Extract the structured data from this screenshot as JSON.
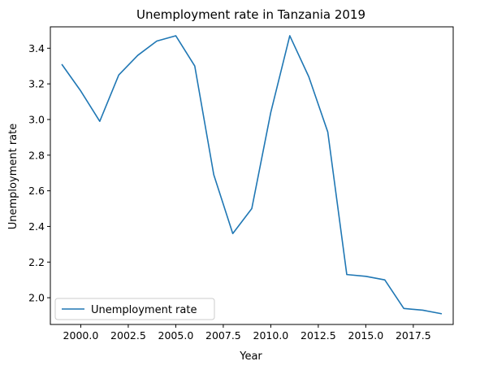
{
  "chart_data": {
    "type": "line",
    "title": "Unemployment rate in Tanzania 2019",
    "xlabel": "Year",
    "ylabel": "Unemployment rate",
    "xlim": [
      1998.4,
      2019.6
    ],
    "ylim": [
      1.85,
      3.52
    ],
    "x_ticks": [
      2000.0,
      2002.5,
      2005.0,
      2007.5,
      2010.0,
      2012.5,
      2015.0,
      2017.5,
      2020.0
    ],
    "x_tick_labels": [
      "2000.0",
      "2002.5",
      "2005.0",
      "2007.5",
      "2010.0",
      "2012.5",
      "2015.0",
      "2017.5",
      "2020.0"
    ],
    "y_ticks": [
      2.0,
      2.2,
      2.4,
      2.6,
      2.8,
      3.0,
      3.2,
      3.4
    ],
    "y_tick_labels": [
      "2.0",
      "2.2",
      "2.4",
      "2.6",
      "2.8",
      "3.0",
      "3.2",
      "3.4"
    ],
    "grid": false,
    "legend": {
      "placement": "lower-left"
    },
    "series": [
      {
        "name": "Unemployment rate",
        "color": "#1f77b4",
        "x": [
          1999,
          2000,
          2001,
          2002,
          2003,
          2004,
          2005,
          2006,
          2007,
          2008,
          2009,
          2010,
          2011,
          2012,
          2013,
          2014,
          2015,
          2016,
          2017,
          2018,
          2019
        ],
        "y": [
          3.31,
          3.16,
          2.99,
          3.25,
          3.36,
          3.44,
          3.47,
          3.3,
          2.69,
          2.36,
          2.5,
          3.04,
          3.47,
          3.24,
          2.93,
          2.13,
          2.12,
          2.1,
          1.94,
          1.93,
          1.91
        ]
      }
    ]
  }
}
